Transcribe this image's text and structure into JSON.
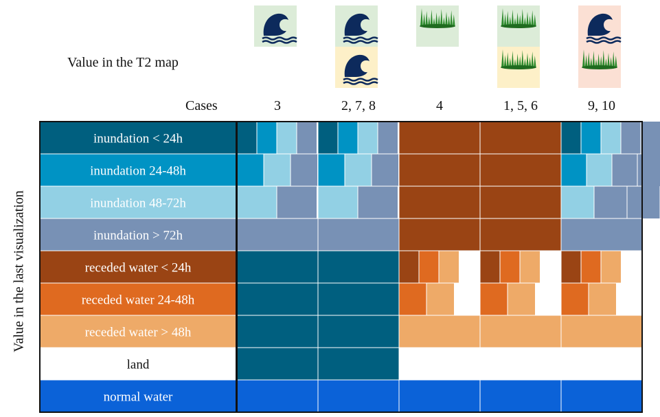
{
  "header_label": "Value in the T2 map",
  "cases_label": "Cases",
  "y_axis_label": "Value in the last visualization",
  "cases": [
    {
      "label": "3",
      "icons": [
        "water"
      ],
      "bg": [
        "#dcecd8"
      ]
    },
    {
      "label": "2, 7, 8",
      "icons": [
        "water",
        "water"
      ],
      "bg": [
        "#dcecd8",
        "#fdf0c8"
      ]
    },
    {
      "label": "4",
      "icons": [
        "grass"
      ],
      "bg": [
        "#dcecd8"
      ]
    },
    {
      "label": "1, 5, 6",
      "icons": [
        "grass",
        "grass"
      ],
      "bg": [
        "#dcecd8",
        "#fdf0c8"
      ]
    },
    {
      "label": "9, 10",
      "icons": [
        "water",
        "grass"
      ],
      "bg": [
        "#fbe0d4",
        "#fbe0d4"
      ]
    }
  ],
  "rows": [
    {
      "label": "inundation < 24h",
      "color": "#005f7f",
      "text_color": "#ffffff"
    },
    {
      "label": "inundation 24-48h",
      "color": "#0093c4",
      "text_color": "#ffffff"
    },
    {
      "label": "inundation 48-72h",
      "color": "#92d0e4",
      "text_color": "#ffffff"
    },
    {
      "label": "inundation > 72h",
      "color": "#7891b5",
      "text_color": "#ffffff"
    },
    {
      "label": "receded water < 24h",
      "color": "#9a4414",
      "text_color": "#ffffff"
    },
    {
      "label": "receded water 24-48h",
      "color": "#df6a20",
      "text_color": "#ffffff"
    },
    {
      "label": "receded water > 48h",
      "color": "#eeaa68",
      "text_color": "#ffffff"
    },
    {
      "label": "land",
      "color": "#ffffff",
      "text_color": "#111111"
    },
    {
      "label": "normal water",
      "color": "#0b62d8",
      "text_color": "#ffffff"
    }
  ],
  "cells": [
    [
      [
        "#005f7f",
        "#0093c4",
        "#92d0e4",
        "#7891b5"
      ],
      [
        "#005f7f",
        "#0093c4",
        "#92d0e4",
        "#7891b5"
      ],
      [
        "#9a4414"
      ],
      [
        "#9a4414"
      ],
      [
        "#005f7f",
        "#0093c4",
        "#92d0e4",
        "#7891b5",
        "#7891b5"
      ]
    ],
    [
      [
        "#0093c4",
        "#92d0e4",
        "#7891b5"
      ],
      [
        "#0093c4",
        "#92d0e4",
        "#7891b5"
      ],
      [
        "#9a4414"
      ],
      [
        "#9a4414"
      ],
      [
        "#0093c4",
        "#92d0e4",
        "#7891b5",
        "#7891b5"
      ]
    ],
    [
      [
        "#92d0e4",
        "#7891b5"
      ],
      [
        "#92d0e4",
        "#7891b5"
      ],
      [
        "#9a4414"
      ],
      [
        "#9a4414"
      ],
      [
        "#92d0e4",
        "#7891b5",
        "#7891b5"
      ]
    ],
    [
      [
        "#7891b5"
      ],
      [
        "#7891b5"
      ],
      [
        "#9a4414"
      ],
      [
        "#9a4414"
      ],
      [
        "#7891b5"
      ]
    ],
    [
      [
        "#005f7f"
      ],
      [
        "#005f7f"
      ],
      [
        "#9a4414",
        "#df6a20",
        "#eeaa68"
      ],
      [
        "#9a4414",
        "#df6a20",
        "#eeaa68"
      ],
      [
        "#9a4414",
        "#df6a20",
        "#eeaa68"
      ]
    ],
    [
      [
        "#005f7f"
      ],
      [
        "#005f7f"
      ],
      [
        "#df6a20",
        "#eeaa68"
      ],
      [
        "#df6a20",
        "#eeaa68"
      ],
      [
        "#df6a20",
        "#eeaa68"
      ]
    ],
    [
      [
        "#005f7f"
      ],
      [
        "#005f7f"
      ],
      [
        "#eeaa68"
      ],
      [
        "#eeaa68"
      ],
      [
        "#eeaa68"
      ]
    ],
    [
      [
        "#005f7f"
      ],
      [
        "#005f7f"
      ],
      [],
      [],
      []
    ],
    [
      [
        "#0b62d8"
      ],
      [
        "#0b62d8"
      ],
      [
        "#0b62d8"
      ],
      [
        "#0b62d8"
      ],
      [
        "#0b62d8"
      ]
    ]
  ]
}
